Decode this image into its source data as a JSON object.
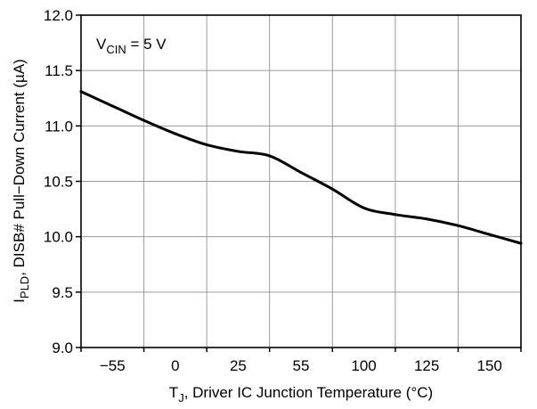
{
  "chart_data": {
    "type": "line",
    "x_tick_labels": [
      "−55",
      "0",
      "25",
      "55",
      "100",
      "125",
      "150"
    ],
    "y_ticks": [
      9.0,
      9.5,
      10.0,
      10.5,
      11.0,
      11.5,
      12.0
    ],
    "y_tick_labels": [
      "9.0",
      "9.5",
      "10.0",
      "10.5",
      "11.0",
      "11.5",
      "12.0"
    ],
    "ylim": [
      9.0,
      12.0
    ],
    "grid": true,
    "xlabel": {
      "main": "T",
      "subscript": "J",
      "rest": ", Driver IC Junction Temperature (°C)"
    },
    "ylabel": {
      "main": "I",
      "subscript": "PLD",
      "rest": ", DISB# Pull−Down Current (µA)"
    },
    "annotation": {
      "main": "V",
      "subscript": "CIN",
      "rest": " = 5 V"
    },
    "series": [
      {
        "x_positions": [
          -0.5,
          0,
          0.5,
          1,
          1.5,
          2,
          2.5,
          3,
          3.5,
          4,
          4.5,
          5,
          5.5,
          6,
          6.5
        ],
        "values": [
          11.31,
          11.18,
          11.05,
          10.93,
          10.83,
          10.77,
          10.73,
          10.58,
          10.43,
          10.26,
          10.2,
          10.16,
          10.1,
          10.02,
          9.94
        ]
      }
    ]
  }
}
